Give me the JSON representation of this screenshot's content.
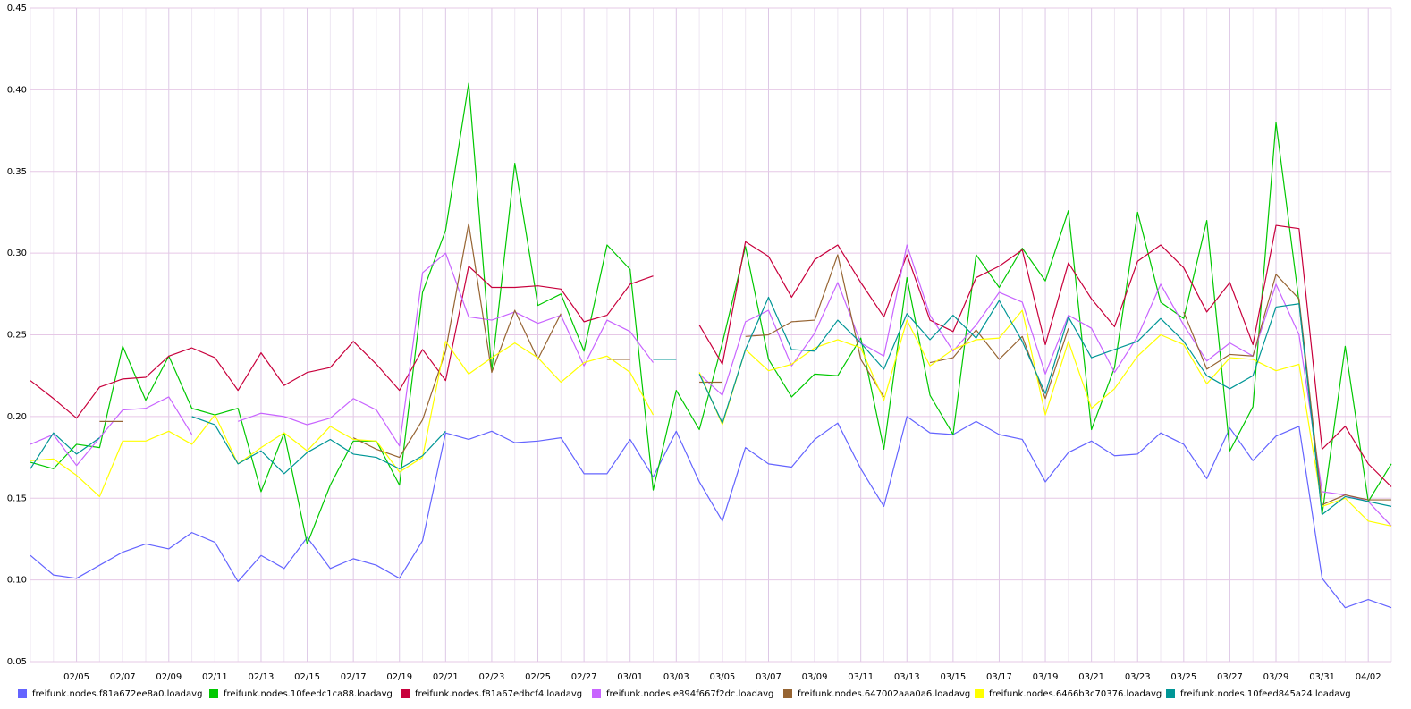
{
  "chart_data": {
    "type": "line",
    "categories": [
      null,
      null,
      "02/05",
      null,
      "02/07",
      null,
      "02/09",
      null,
      "02/11",
      null,
      "02/13",
      null,
      "02/15",
      null,
      "02/17",
      null,
      "02/19",
      null,
      "02/21",
      null,
      "02/23",
      null,
      "02/25",
      null,
      "02/27",
      null,
      "03/01",
      null,
      "03/03",
      null,
      "03/05",
      null,
      "03/07",
      null,
      "03/09",
      null,
      "03/11",
      null,
      "03/13",
      null,
      "03/15",
      null,
      "03/17",
      null,
      "03/19",
      null,
      "03/21",
      null,
      "03/23",
      null,
      "03/25",
      null,
      "03/27",
      null,
      "03/29",
      null,
      "03/31",
      null,
      "04/02",
      null
    ],
    "ylim": [
      0.05,
      0.45
    ],
    "yticks": [
      0.05,
      {
        "value": 0.1,
        "label": "0.10"
      },
      0.15,
      {
        "value": 0.2,
        "label": "0.20"
      },
      0.25,
      {
        "value": 0.3,
        "label": "0.30"
      },
      0.35,
      {
        "value": 0.4,
        "label": "0.40"
      },
      0.45
    ],
    "grid": true,
    "legend": "bottom",
    "series": [
      {
        "name": "freifunk.nodes.f81a672ee8a0.loadavg",
        "color": "#6464ff",
        "values": [
          0.115,
          0.103,
          0.101,
          0.109,
          0.117,
          0.122,
          0.119,
          0.129,
          0.123,
          0.099,
          0.115,
          0.107,
          0.126,
          0.107,
          0.113,
          0.109,
          0.101,
          0.124,
          0.19,
          0.186,
          0.191,
          0.184,
          0.185,
          0.187,
          0.165,
          0.165,
          0.186,
          0.163,
          0.191,
          0.16,
          0.136,
          0.181,
          0.171,
          0.169,
          0.186,
          0.196,
          0.168,
          0.145,
          0.2,
          0.19,
          0.189,
          0.197,
          0.189,
          0.186,
          0.16,
          0.178,
          0.185,
          0.176,
          0.177,
          0.19,
          0.183,
          0.162,
          0.193,
          0.173,
          0.188,
          0.194,
          0.101,
          0.083,
          0.088,
          0.083
        ]
      },
      {
        "name": "freifunk.nodes.10feedc1ca88.loadavg",
        "color": "#00c800",
        "values": [
          0.172,
          0.168,
          0.183,
          0.181,
          0.243,
          0.21,
          0.237,
          0.205,
          0.201,
          0.205,
          0.154,
          0.19,
          0.122,
          0.158,
          0.185,
          0.185,
          0.158,
          0.276,
          0.314,
          0.404,
          0.228,
          0.355,
          0.268,
          0.275,
          0.24,
          0.305,
          0.29,
          0.155,
          0.216,
          0.192,
          0.245,
          0.304,
          0.235,
          0.212,
          0.226,
          0.225,
          0.248,
          0.18,
          0.285,
          0.213,
          0.189,
          0.299,
          0.279,
          0.303,
          0.283,
          0.326,
          0.192,
          0.23,
          0.325,
          0.27,
          0.26,
          0.32,
          0.179,
          0.206,
          0.38,
          0.27,
          0.14,
          0.243,
          0.148,
          0.171
        ]
      },
      {
        "name": "freifunk.nodes.f81a67edbcf4.loadavg",
        "color": "#c8003c",
        "values": [
          0.222,
          0.211,
          0.199,
          0.218,
          0.223,
          0.224,
          0.237,
          0.242,
          0.236,
          0.216,
          0.239,
          0.219,
          0.227,
          0.23,
          0.246,
          0.232,
          0.216,
          0.241,
          0.222,
          0.292,
          0.279,
          0.279,
          0.28,
          0.278,
          0.258,
          0.262,
          0.281,
          0.286,
          null,
          0.256,
          0.232,
          0.307,
          0.298,
          0.273,
          0.296,
          0.305,
          0.282,
          0.261,
          0.299,
          0.259,
          0.252,
          0.285,
          0.292,
          0.302,
          0.244,
          0.294,
          0.272,
          0.255,
          0.295,
          0.305,
          0.291,
          0.264,
          0.282,
          0.244,
          0.317,
          0.315,
          0.18,
          0.194,
          0.171,
          0.157
        ]
      },
      {
        "name": "freifunk.nodes.e894f667f2dc.loadavg",
        "color": "#c864ff",
        "values": [
          0.183,
          0.189,
          0.17,
          0.187,
          0.204,
          0.205,
          0.212,
          0.189,
          null,
          0.197,
          0.202,
          0.2,
          0.195,
          0.199,
          0.211,
          0.204,
          0.182,
          0.288,
          0.3,
          0.261,
          0.259,
          0.264,
          0.257,
          0.262,
          0.231,
          0.259,
          0.252,
          0.233,
          null,
          0.226,
          0.213,
          0.258,
          0.265,
          0.231,
          0.251,
          0.282,
          0.245,
          0.237,
          0.305,
          0.262,
          0.24,
          0.256,
          0.276,
          0.27,
          0.226,
          0.262,
          0.254,
          0.227,
          0.249,
          0.281,
          0.256,
          0.234,
          0.245,
          0.237,
          0.281,
          0.25,
          0.154,
          0.152,
          0.148,
          0.133
        ]
      },
      {
        "name": "freifunk.nodes.647002aaa0a6.loadavg",
        "color": "#966432",
        "values": [
          null,
          null,
          null,
          0.197,
          null,
          null,
          null,
          null,
          null,
          null,
          null,
          null,
          null,
          null,
          0.187,
          0.18,
          0.175,
          0.198,
          0.24,
          0.318,
          0.227,
          0.265,
          0.235,
          0.263,
          null,
          0.235,
          null,
          null,
          null,
          0.221,
          null,
          0.249,
          0.25,
          0.258,
          0.259,
          0.299,
          0.235,
          0.212,
          null,
          0.233,
          0.236,
          0.253,
          0.235,
          0.249,
          0.211,
          0.254,
          null,
          null,
          null,
          null,
          0.264,
          0.229,
          0.238,
          0.237,
          0.287,
          0.272,
          0.146,
          0.152,
          0.149,
          0.149
        ]
      },
      {
        "name": "freifunk.nodes.6466b3c70376.loadavg",
        "color": "#ffff00",
        "values": [
          0.173,
          0.174,
          0.164,
          0.151,
          0.185,
          0.185,
          0.191,
          0.183,
          0.201,
          0.171,
          0.181,
          0.19,
          0.179,
          0.194,
          0.186,
          0.185,
          0.166,
          0.175,
          0.246,
          0.226,
          0.236,
          0.245,
          0.236,
          0.221,
          0.233,
          0.237,
          0.227,
          0.201,
          null,
          0.227,
          0.195,
          0.241,
          0.228,
          0.232,
          0.242,
          0.247,
          0.242,
          0.21,
          0.259,
          0.231,
          0.241,
          0.247,
          0.248,
          0.265,
          0.201,
          0.246,
          0.205,
          0.217,
          0.237,
          0.25,
          0.244,
          0.22,
          0.236,
          0.235,
          0.228,
          0.232,
          0.145,
          0.15,
          0.136,
          0.133
        ]
      },
      {
        "name": "freifunk.nodes.10feed845a24.loadavg",
        "color": "#009696",
        "values": [
          0.168,
          0.19,
          0.177,
          0.187,
          null,
          null,
          null,
          0.2,
          0.195,
          0.171,
          0.179,
          0.165,
          0.178,
          0.186,
          0.177,
          0.175,
          0.168,
          0.176,
          0.191,
          null,
          null,
          null,
          null,
          null,
          null,
          null,
          null,
          0.235,
          null,
          0.226,
          0.196,
          0.241,
          0.273,
          0.241,
          0.24,
          0.259,
          0.245,
          0.229,
          0.263,
          0.247,
          0.262,
          0.248,
          0.271,
          0.246,
          0.214,
          0.261,
          0.236,
          0.241,
          0.246,
          0.26,
          0.246,
          0.225,
          0.217,
          0.225,
          0.267,
          0.269,
          0.14,
          0.151,
          0.148,
          0.145
        ]
      }
    ]
  }
}
